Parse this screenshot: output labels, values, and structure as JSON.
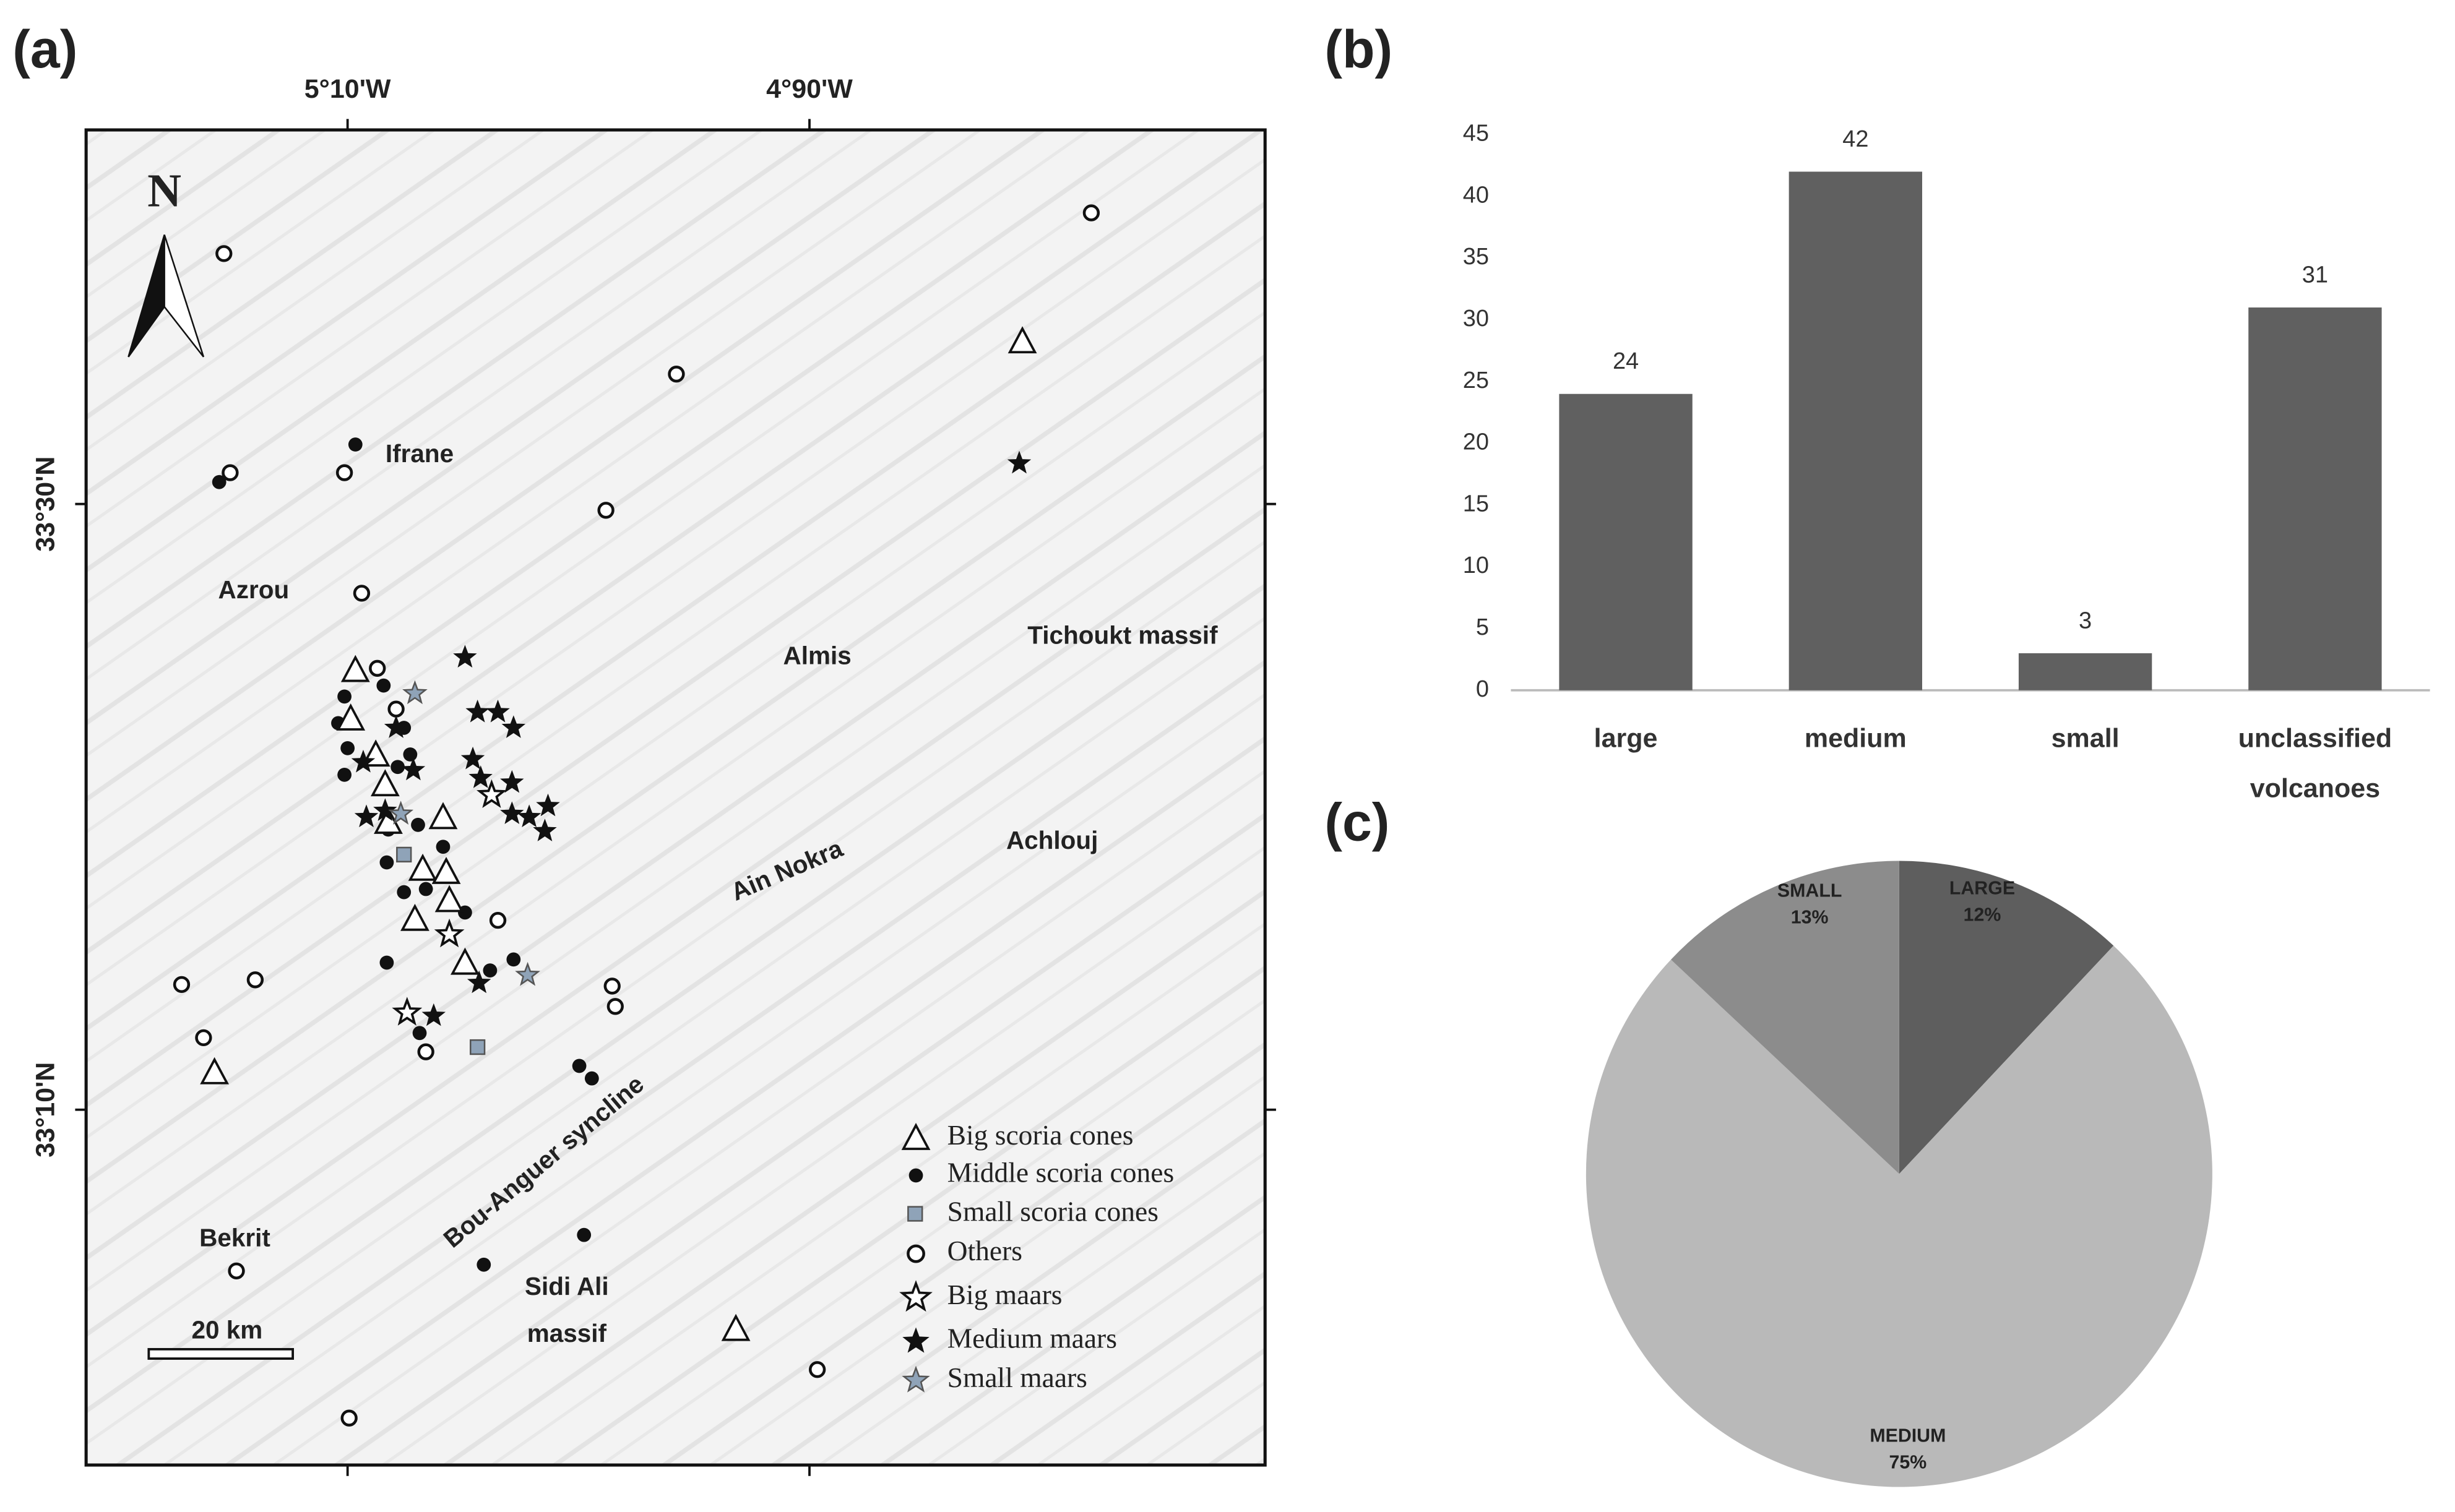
{
  "panels": [
    "(a)",
    "(b)",
    "(c)"
  ],
  "map": {
    "lon_labels": [
      "5°10'W",
      "4°90'W"
    ],
    "lat_labels": [
      "33°30'N",
      "33°10'N"
    ],
    "north": "N",
    "scale": "20 km",
    "places": [
      "Ifrane",
      "Azrou",
      "Almis",
      "Tichoukt massif",
      "Ain Nokra",
      "Achlouj",
      "Bou-Anguer syncline",
      "Bekrit",
      "Sidi Ali massif"
    ],
    "legend": [
      "Big scoria cones",
      "Middle scoria cones",
      "Small scoria cones",
      "Others",
      "Big maars",
      "Medium maars",
      "Small maars"
    ]
  },
  "chart_data": [
    {
      "type": "bar",
      "categories": [
        "large",
        "medium",
        "small",
        "unclassified volcanoes"
      ],
      "values": [
        24,
        42,
        3,
        31
      ],
      "color": "#606060",
      "ylim": [
        0,
        45
      ],
      "yticks": [
        0,
        5,
        10,
        15,
        20,
        25,
        30,
        35,
        40,
        45
      ]
    },
    {
      "type": "pie",
      "categories": [
        "LARGE",
        "MEDIUM",
        "SMALL"
      ],
      "values": [
        12,
        75,
        13
      ],
      "value_labels": [
        "12%",
        "75%",
        "13%"
      ],
      "colors": [
        "#5e5e5e",
        "#b9b9b9",
        "#8c8c8c"
      ]
    }
  ]
}
